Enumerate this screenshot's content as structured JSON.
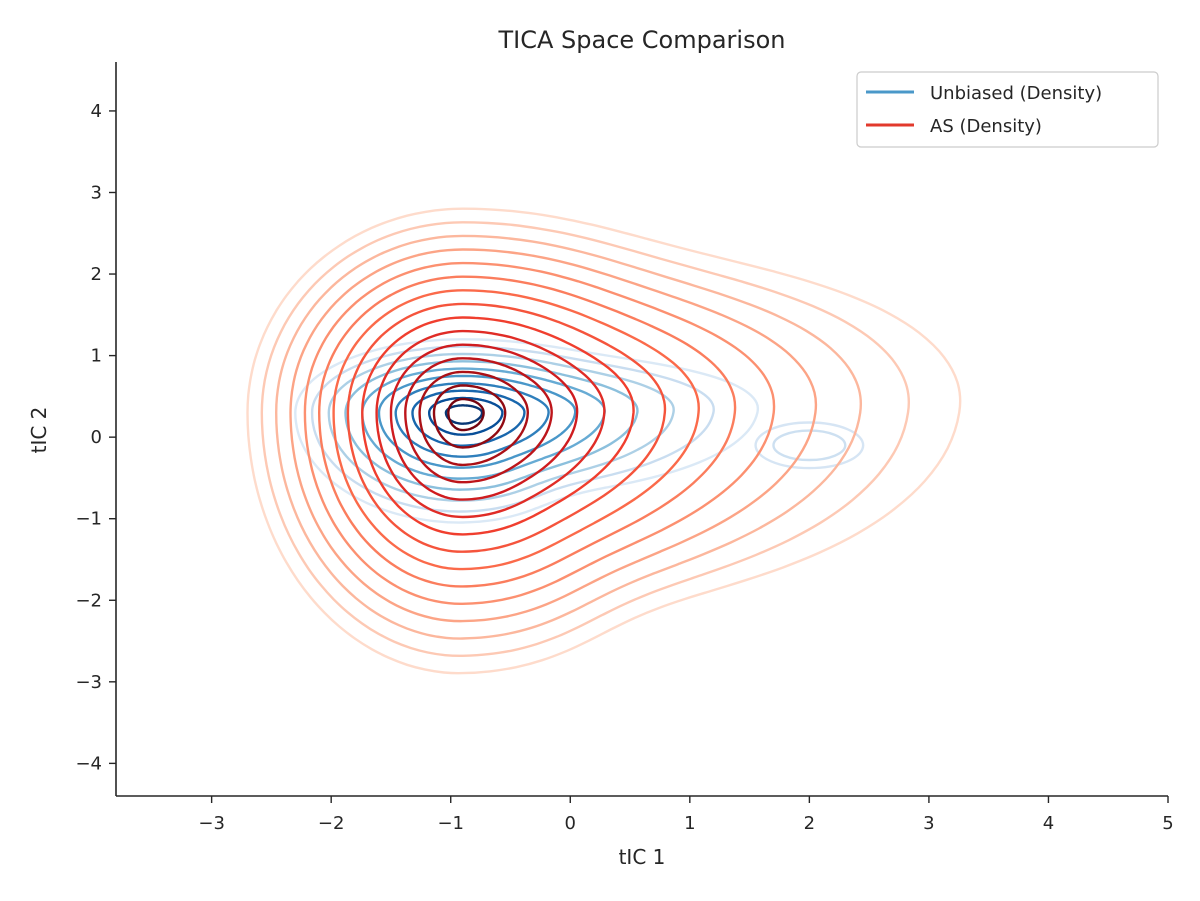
{
  "chart_data": {
    "type": "contour",
    "title": "TICA Space Comparison",
    "xlabel": "tIC 1",
    "ylabel": "tIC 2",
    "xlim": [
      -3.8,
      5.0
    ],
    "ylim": [
      -4.4,
      4.6
    ],
    "xticks": [
      -3,
      -2,
      -1,
      0,
      1,
      2,
      3,
      4,
      5
    ],
    "yticks": [
      -4,
      -3,
      -2,
      -1,
      0,
      1,
      2,
      3,
      4
    ],
    "grid": false,
    "legend_position": "top-right",
    "colors": {
      "unbiased": "#4a98c9",
      "as": "#e2392c"
    },
    "series": [
      {
        "name": "Unbiased (Density)",
        "colormap": "Blues",
        "peak": [
          -0.9,
          0.3
        ],
        "secondary_mode": [
          2.0,
          -0.1
        ],
        "x_range": [
          -2.3,
          2.5
        ],
        "y_range": [
          -1.2,
          1.2
        ],
        "levels": 10
      },
      {
        "name": "AS (Density)",
        "colormap": "Reds",
        "peak": [
          -0.9,
          0.3
        ],
        "x_range": [
          -2.7,
          3.3
        ],
        "y_range": [
          -2.9,
          2.8
        ],
        "levels": 15
      }
    ]
  }
}
